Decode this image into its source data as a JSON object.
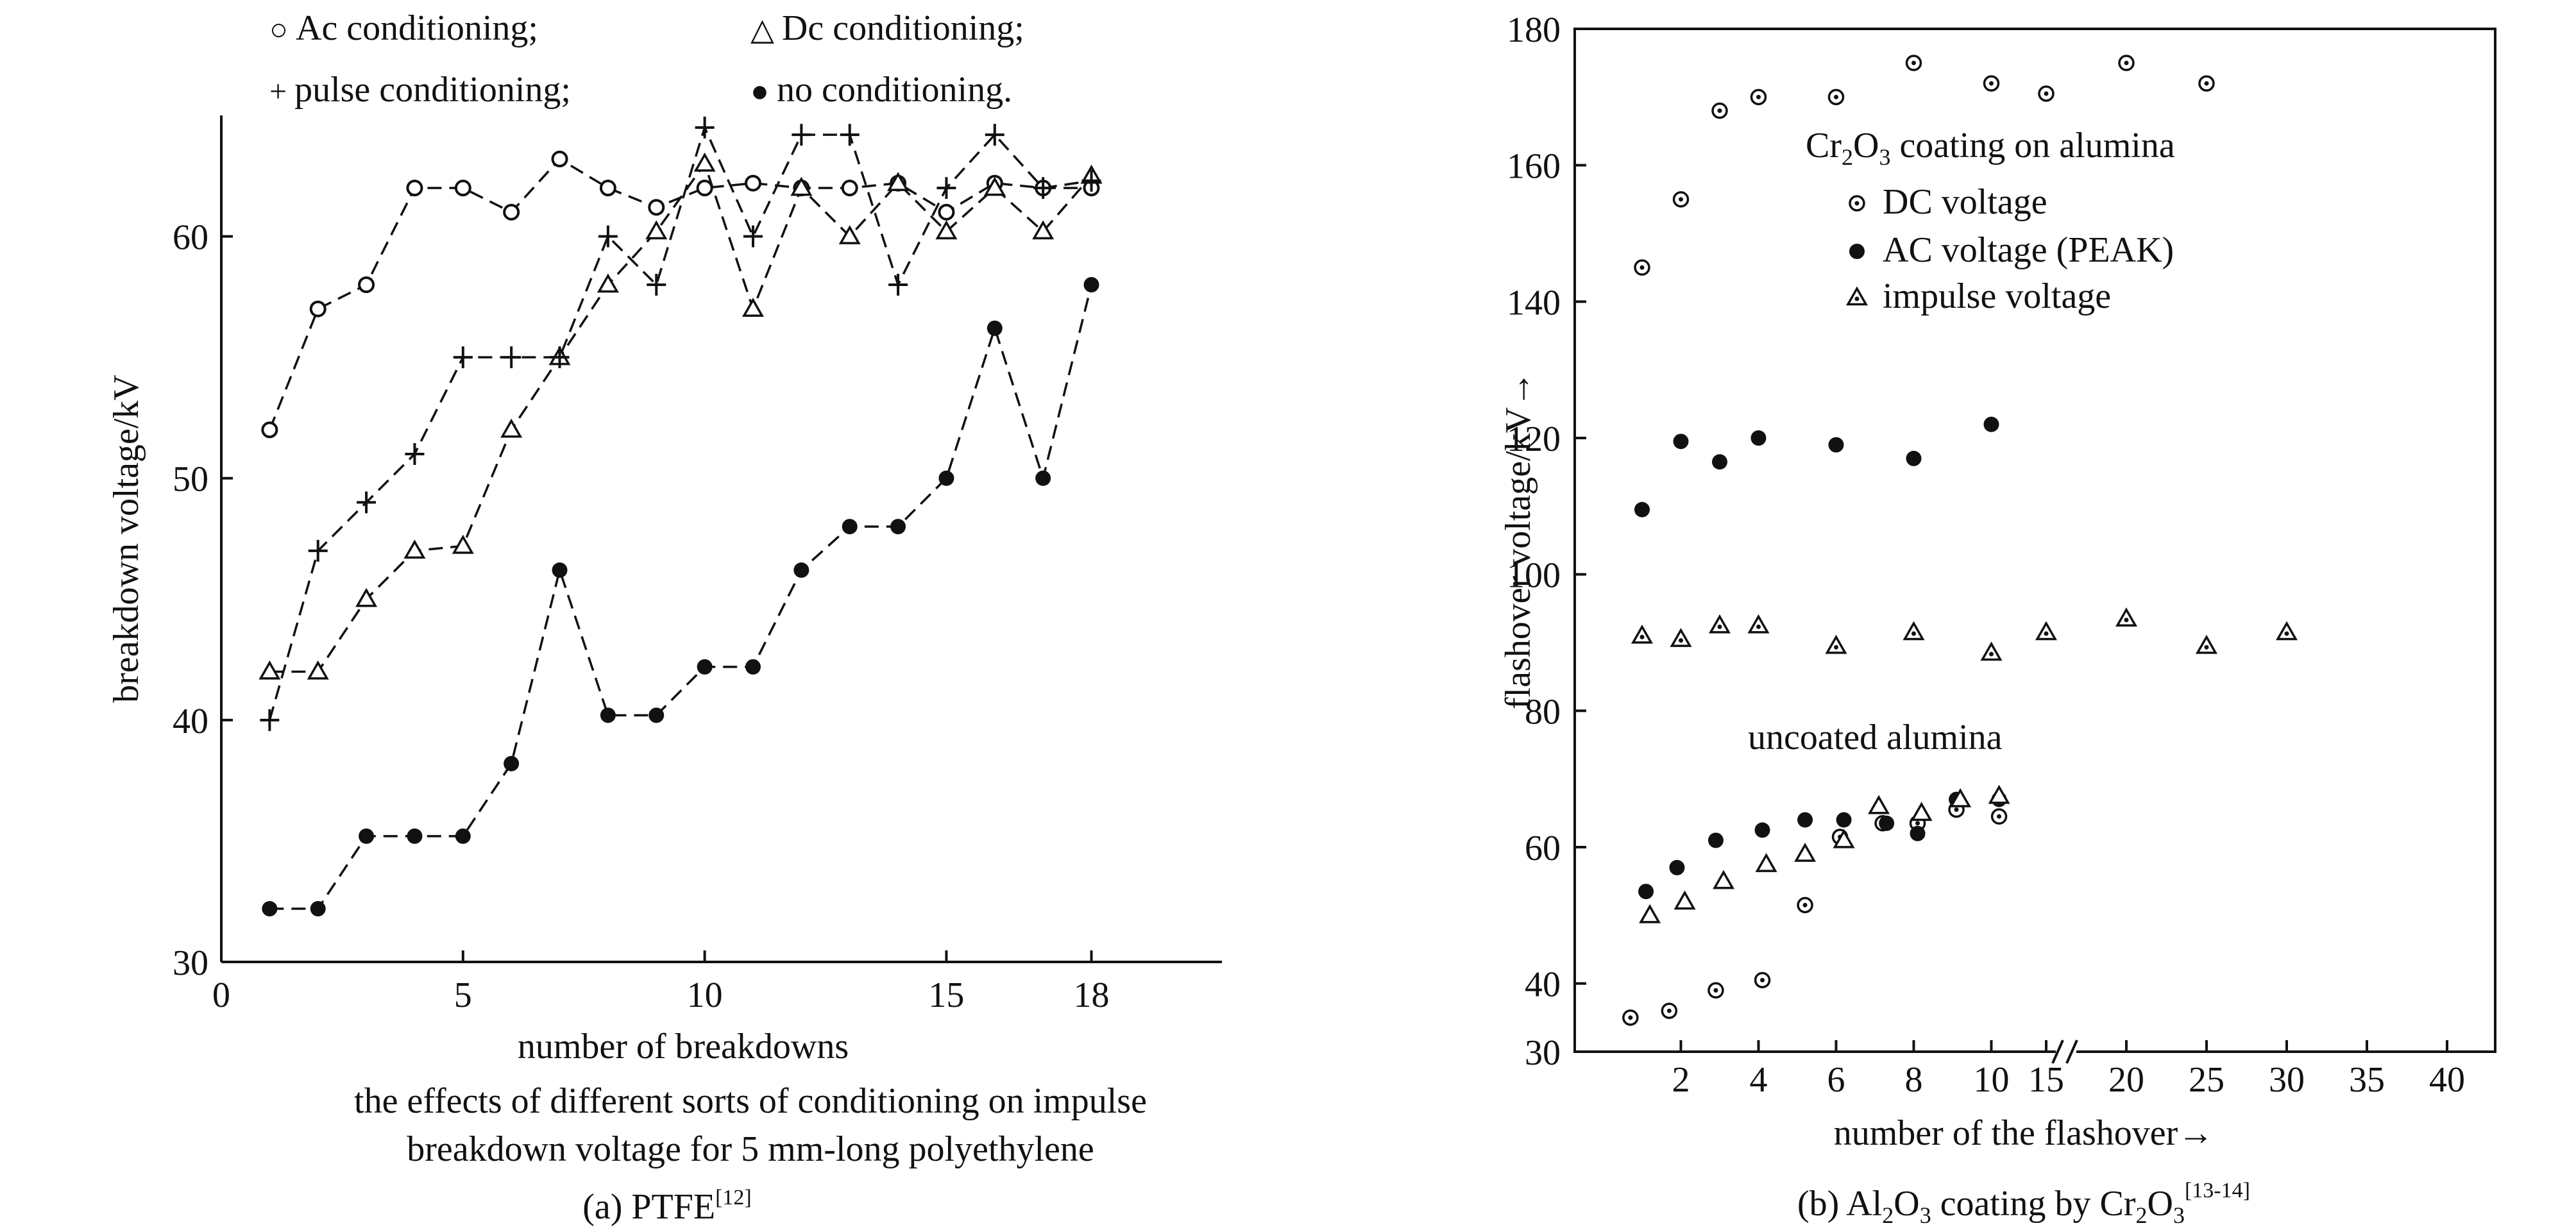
{
  "chart_data": [
    {
      "type": "line",
      "legend": [
        {
          "marker": "○",
          "label": "Ac conditioning;"
        },
        {
          "marker": "△",
          "label": "Dc conditioning;"
        },
        {
          "marker": "+",
          "label": "pulse conditioning;"
        },
        {
          "marker": "●",
          "label": "no conditioning."
        }
      ],
      "ylabel": "breakdown voltage/kV",
      "xlabel": "number of breakdowns",
      "caption_lines": [
        "the effects of different sorts of conditioning on impulse",
        "breakdown voltage for 5 mm-long polyethylene"
      ],
      "subtitle": {
        "text": "(a) PTFE",
        "sup": "[12]"
      },
      "xlim": [
        0,
        20.7
      ],
      "ylim": [
        30,
        65
      ],
      "xticks": [
        0,
        5,
        10,
        15,
        18
      ],
      "xtick_labels": [
        "0",
        "5",
        "10",
        "15",
        "18"
      ],
      "yticks": [
        30,
        40,
        50,
        60
      ],
      "ytick_labels": [
        "30",
        "40",
        "50",
        "60"
      ],
      "series": [
        {
          "marker": "circle-open",
          "x": [
            1,
            2,
            3,
            4,
            5,
            6,
            7,
            8,
            9,
            10,
            11,
            12,
            13,
            14,
            15,
            16,
            17,
            18
          ],
          "y": [
            52,
            57,
            58,
            62,
            62,
            61,
            63.2,
            62,
            61.2,
            62,
            62.2,
            62,
            62,
            62.2,
            61,
            62.2,
            62,
            62
          ]
        },
        {
          "marker": "triangle",
          "x": [
            1,
            2,
            3,
            4,
            5,
            6,
            7,
            8,
            9,
            10,
            11,
            12,
            13,
            14,
            15,
            16,
            17,
            18
          ],
          "y": [
            42,
            42,
            45,
            47,
            47.2,
            52,
            55,
            58,
            60.2,
            63,
            57,
            62,
            60,
            62.2,
            60.2,
            62,
            60.2,
            62.5
          ]
        },
        {
          "marker": "plus",
          "x": [
            1,
            2,
            3,
            4,
            5,
            6,
            7,
            8,
            9,
            10,
            11,
            12,
            13,
            14,
            15,
            16,
            17,
            18
          ],
          "y": [
            40,
            47,
            49,
            51,
            55,
            55,
            55,
            60,
            58,
            64.5,
            60,
            64.2,
            64.2,
            58,
            62,
            64.2,
            62,
            62.3
          ]
        },
        {
          "marker": "circle-filled",
          "x": [
            1,
            2,
            3,
            4,
            5,
            6,
            7,
            8,
            9,
            10,
            11,
            12,
            13,
            14,
            15,
            16,
            17,
            18
          ],
          "y": [
            32.2,
            32.2,
            35.2,
            35.2,
            35.2,
            38.2,
            46.2,
            40.2,
            40.2,
            42.2,
            42.2,
            46.2,
            48,
            48,
            50,
            56.2,
            50,
            58
          ]
        }
      ]
    },
    {
      "type": "scatter",
      "ylabel": "flashover voltage/kV→",
      "xlabel": "number of the flashover→",
      "subtitle": {
        "t1": "(b) Al",
        "s1": "2",
        "t2": "O",
        "s2": "3",
        "t3": " coating by Cr",
        "s3": "2",
        "t4": "O",
        "s4": "3",
        "sup": "[13-14]"
      },
      "annotations": {
        "coated": {
          "t1": "Cr",
          "s1": "2",
          "t2": "O",
          "s2": "3",
          "t3": " coating on alumina"
        },
        "uncoated": "uncoated alumina"
      },
      "legend": [
        {
          "marker": "circle-dot",
          "label": "DC voltage"
        },
        {
          "marker": "circle-filled",
          "label": "AC voltage (PEAK)"
        },
        {
          "marker": "triangle-dot",
          "label": "impulse voltage"
        }
      ],
      "x_axis_break": true,
      "xticks": [
        2,
        4,
        6,
        8,
        10,
        15,
        20,
        25,
        30,
        35,
        40
      ],
      "xtick_labels": [
        "2",
        "4",
        "6",
        "8",
        "10",
        "15",
        "20",
        "25",
        "30",
        "35",
        "40"
      ],
      "ylim": [
        30,
        180
      ],
      "yticks": [
        30,
        40,
        60,
        80,
        100,
        120,
        140,
        160,
        180
      ],
      "ytick_labels": [
        "30",
        "40",
        "60",
        "80",
        "100",
        "120",
        "140",
        "160",
        "180"
      ],
      "series": [
        {
          "name": "DC voltage",
          "marker": "circle-dot",
          "x": [
            1,
            2,
            3,
            4,
            6,
            8,
            10,
            15,
            20,
            25
          ],
          "y": [
            145,
            155,
            168,
            170,
            170,
            175,
            172,
            170.5,
            175,
            172
          ]
        },
        {
          "name": "AC voltage (PEAK)",
          "marker": "circle-filled",
          "x": [
            1,
            2,
            3,
            4,
            6,
            8,
            10
          ],
          "y": [
            109.5,
            119.5,
            116.5,
            120,
            119,
            117,
            122
          ]
        },
        {
          "name": "impulse voltage",
          "marker": "triangle-dot",
          "x": [
            1,
            2,
            3,
            4,
            6,
            8,
            10,
            15,
            20,
            25,
            30
          ],
          "y": [
            91,
            90.5,
            92.5,
            92.5,
            89.5,
            91.5,
            88.5,
            91.5,
            93.5,
            89.5,
            91.5
          ]
        },
        {
          "marker": "circle-dot",
          "x": [
            0.7,
            1.7,
            2.9,
            4.1,
            5.2,
            6.1,
            7.2,
            8.1,
            9.1,
            10.2
          ],
          "y": [
            35,
            36,
            39,
            40.5,
            51.5,
            61.5,
            63.5,
            63.5,
            65.5,
            64.5
          ]
        },
        {
          "marker": "circle-filled",
          "x": [
            1.1,
            1.9,
            2.9,
            4.1,
            5.2,
            6.2,
            7.3,
            8.1,
            9.1,
            10.2
          ],
          "y": [
            53.5,
            57,
            61,
            62.5,
            64,
            64,
            63.5,
            62,
            67,
            67
          ]
        },
        {
          "marker": "triangle",
          "x": [
            1.2,
            2.1,
            3.1,
            4.2,
            5.2,
            6.2,
            7.1,
            8.2,
            9.2,
            10.2
          ],
          "y": [
            50,
            52,
            55,
            57.5,
            59,
            61,
            66,
            65,
            67,
            67.5
          ]
        }
      ]
    }
  ]
}
